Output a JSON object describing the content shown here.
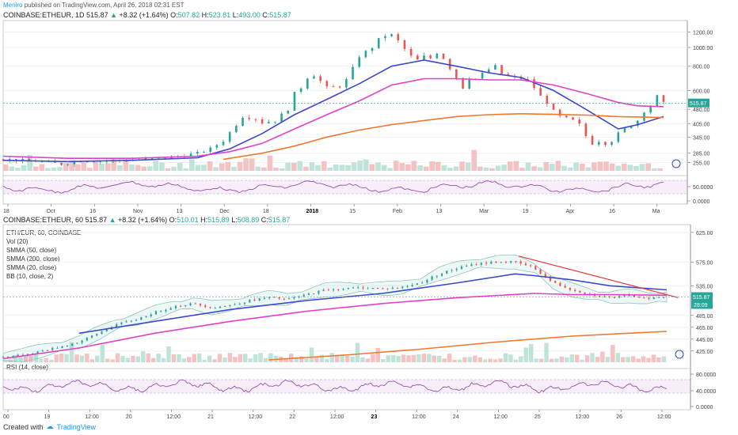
{
  "publish": {
    "author": "Meniro",
    "text": "published on TradingView.com, April 26, 2018 02:31 EST"
  },
  "footer": {
    "created_with": "Created with",
    "brand": "TradingView"
  },
  "panel_top": {
    "header_symbol": "COINBASE:ETHEUR, 1D",
    "header_price": "515.87",
    "header_change": "+8.32 (+1.64%)",
    "ohlc": {
      "o_label": "O:",
      "o": "507.82",
      "h_label": "H:",
      "h": "523.81",
      "l_label": "L:",
      "l": "493.00",
      "c_label": "C:",
      "c": "515.87"
    },
    "price_badge": "515.87",
    "rsi_ticks": [
      "50.0000",
      "0.0000"
    ]
  },
  "panel_bottom": {
    "header_symbol": "COINBASE:ETHEUR, 60",
    "header_price": "515.87",
    "header_change": "+8.32 (+1.64%)",
    "ohlc": {
      "o_label": "O:",
      "o": "510.01",
      "h_label": "H:",
      "h": "515.89",
      "l_label": "L:",
      "l": "508.89",
      "c_label": "C:",
      "c": "515.87"
    },
    "legend": [
      "ETH/EUR, 60, COINBASE",
      "Vol (20)",
      "SMMA (50, close)",
      "SMMA (200, close)",
      "SMMA (20, close)",
      "BB (10, close, 2)"
    ],
    "price_badge": "515.87",
    "price_badge2": "28:09",
    "rsi_label": "RSI (14, close)",
    "rsi_ticks": [
      "80.0000",
      "40.0000",
      "0.0000"
    ]
  },
  "chart_data": [
    {
      "type": "candlestick",
      "panel": "top",
      "title": "COINBASE:ETHEUR, 1D",
      "x_ticks": [
        "18",
        "Oct",
        "16",
        "Nov",
        "13",
        "Dec",
        "18",
        "2018",
        "15",
        "Feb",
        "13",
        "Mar",
        "19",
        "Apr",
        "16",
        "Ma"
      ],
      "y_ticks": [
        1200,
        1000,
        800,
        600,
        480,
        405,
        345,
        285,
        255
      ],
      "y_tick_labels": [
        "1200.00",
        "1000.00",
        "800.00",
        "600.00",
        "480.00",
        "405.00",
        "345.00",
        "285.00",
        "255.00"
      ],
      "ylim": [
        240,
        1300
      ],
      "scale": "log",
      "close_path": [
        [
          0,
          265
        ],
        [
          3,
          262
        ],
        [
          6,
          258
        ],
        [
          9,
          250
        ],
        [
          12,
          262
        ],
        [
          15,
          260
        ],
        [
          18,
          262
        ],
        [
          21,
          264
        ],
        [
          24,
          268
        ],
        [
          27,
          275
        ],
        [
          30,
          285
        ],
        [
          32,
          300
        ],
        [
          34,
          330
        ],
        [
          36,
          400
        ],
        [
          37,
          440
        ],
        [
          39,
          430
        ],
        [
          40,
          410
        ],
        [
          42,
          420
        ],
        [
          44,
          480
        ],
        [
          45,
          580
        ],
        [
          46,
          620
        ],
        [
          47,
          700
        ],
        [
          48,
          720
        ],
        [
          49,
          670
        ],
        [
          50,
          620
        ],
        [
          52,
          630
        ],
        [
          53,
          680
        ],
        [
          54,
          780
        ],
        [
          55,
          900
        ],
        [
          56,
          950
        ],
        [
          57,
          1000
        ],
        [
          58,
          1100
        ],
        [
          59,
          1150
        ],
        [
          60,
          1160
        ],
        [
          61,
          1080
        ],
        [
          62,
          980
        ],
        [
          63,
          900
        ],
        [
          64,
          860
        ],
        [
          65,
          900
        ],
        [
          66,
          880
        ],
        [
          67,
          940
        ],
        [
          68,
          880
        ],
        [
          69,
          780
        ],
        [
          70,
          700
        ],
        [
          71,
          620
        ],
        [
          72,
          700
        ],
        [
          73,
          690
        ],
        [
          74,
          730
        ],
        [
          75,
          770
        ],
        [
          76,
          800
        ],
        [
          77,
          730
        ],
        [
          78,
          710
        ],
        [
          79,
          700
        ],
        [
          80,
          690
        ],
        [
          81,
          680
        ],
        [
          82,
          620
        ],
        [
          83,
          560
        ],
        [
          84,
          520
        ],
        [
          85,
          470
        ],
        [
          86,
          440
        ],
        [
          87,
          430
        ],
        [
          88,
          420
        ],
        [
          89,
          400
        ],
        [
          90,
          350
        ],
        [
          91,
          320
        ],
        [
          92,
          330
        ],
        [
          93,
          320
        ],
        [
          94,
          330
        ],
        [
          95,
          360
        ],
        [
          96,
          380
        ],
        [
          97,
          400
        ],
        [
          98,
          420
        ],
        [
          99,
          470
        ],
        [
          100,
          500
        ],
        [
          101,
          560
        ],
        [
          102,
          515
        ]
      ],
      "series": [
        {
          "name": "SMMA 20",
          "color": "#3b48c9",
          "values": [
            [
              0,
              262
            ],
            [
              10,
              258
            ],
            [
              20,
              262
            ],
            [
              30,
              270
            ],
            [
              35,
              300
            ],
            [
              40,
              360
            ],
            [
              45,
              450
            ],
            [
              50,
              540
            ],
            [
              55,
              650
            ],
            [
              60,
              800
            ],
            [
              65,
              860
            ],
            [
              70,
              800
            ],
            [
              75,
              740
            ],
            [
              80,
              700
            ],
            [
              85,
              600
            ],
            [
              90,
              480
            ],
            [
              95,
              380
            ],
            [
              98,
              400
            ],
            [
              102,
              440
            ]
          ]
        },
        {
          "name": "SMMA 50",
          "color": "#e040c8",
          "values": [
            [
              0,
              275
            ],
            [
              10,
              268
            ],
            [
              20,
              268
            ],
            [
              30,
              275
            ],
            [
              35,
              290
            ],
            [
              40,
              320
            ],
            [
              45,
              380
            ],
            [
              50,
              450
            ],
            [
              55,
              530
            ],
            [
              60,
              640
            ],
            [
              65,
              690
            ],
            [
              70,
              690
            ],
            [
              75,
              680
            ],
            [
              80,
              680
            ],
            [
              85,
              640
            ],
            [
              90,
              580
            ],
            [
              95,
              520
            ],
            [
              98,
              500
            ],
            [
              102,
              495
            ]
          ]
        },
        {
          "name": "SMMA 200",
          "color": "#f07830",
          "values": [
            [
              34,
              265
            ],
            [
              40,
              285
            ],
            [
              45,
              310
            ],
            [
              50,
              345
            ],
            [
              55,
              375
            ],
            [
              60,
              400
            ],
            [
              65,
              420
            ],
            [
              70,
              440
            ],
            [
              75,
              450
            ],
            [
              80,
              455
            ],
            [
              85,
              452
            ],
            [
              90,
              448
            ],
            [
              95,
              440
            ],
            [
              102,
              435
            ]
          ]
        }
      ],
      "rsi_range": [
        0,
        100
      ]
    },
    {
      "type": "candlestick",
      "panel": "bottom",
      "title": "COINBASE:ETHEUR, 60",
      "x_ticks": [
        "00",
        "19",
        "12:00",
        "20",
        "12:00",
        "21",
        "12:00",
        "22",
        "12:00",
        "23",
        "12:00",
        "24",
        "12:00",
        "25",
        "12:00",
        "26",
        "12:00"
      ],
      "y_ticks": [
        625,
        575,
        535,
        485,
        465,
        445,
        425
      ],
      "y_tick_labels": [
        "625.00",
        "575.00",
        "535.00",
        "485.00",
        "465.00",
        "445.00",
        "425.00"
      ],
      "ylim": [
        410,
        630
      ],
      "close_path": [
        [
          0,
          415
        ],
        [
          5,
          418
        ],
        [
          10,
          425
        ],
        [
          15,
          432
        ],
        [
          20,
          440
        ],
        [
          25,
          455
        ],
        [
          30,
          470
        ],
        [
          35,
          478
        ],
        [
          40,
          490
        ],
        [
          45,
          500
        ],
        [
          50,
          505
        ],
        [
          55,
          498
        ],
        [
          60,
          502
        ],
        [
          65,
          510
        ],
        [
          70,
          515
        ],
        [
          75,
          512
        ],
        [
          80,
          520
        ],
        [
          85,
          528
        ],
        [
          90,
          530
        ],
        [
          95,
          532
        ],
        [
          100,
          530
        ],
        [
          105,
          532
        ],
        [
          110,
          540
        ],
        [
          115,
          555
        ],
        [
          120,
          565
        ],
        [
          125,
          572
        ],
        [
          130,
          575
        ],
        [
          135,
          575
        ],
        [
          140,
          565
        ],
        [
          145,
          540
        ],
        [
          150,
          528
        ],
        [
          155,
          520
        ],
        [
          160,
          515
        ],
        [
          165,
          518
        ],
        [
          170,
          514
        ],
        [
          175,
          516
        ]
      ],
      "series": [
        {
          "name": "SMMA 20",
          "color": "#3b48c9",
          "values": [
            [
              20,
              455
            ],
            [
              40,
              475
            ],
            [
              60,
              495
            ],
            [
              80,
              510
            ],
            [
              100,
              522
            ],
            [
              120,
              540
            ],
            [
              135,
              555
            ],
            [
              140,
              552
            ],
            [
              150,
              545
            ],
            [
              160,
              535
            ],
            [
              175,
              528
            ]
          ]
        },
        {
          "name": "SMMA 50",
          "color": "#e040c8",
          "values": [
            [
              0,
              412
            ],
            [
              20,
              430
            ],
            [
              40,
              455
            ],
            [
              60,
              475
            ],
            [
              80,
              492
            ],
            [
              100,
              505
            ],
            [
              120,
              515
            ],
            [
              140,
              522
            ],
            [
              150,
              520
            ],
            [
              160,
              520
            ],
            [
              175,
              519
            ]
          ]
        },
        {
          "name": "SMMA 200",
          "color": "#f07830",
          "values": [
            [
              70,
              410
            ],
            [
              90,
              418
            ],
            [
              110,
              428
            ],
            [
              130,
              440
            ],
            [
              150,
              450
            ],
            [
              165,
              455
            ],
            [
              175,
              458
            ]
          ]
        },
        {
          "name": "trendline",
          "color": "#e53935",
          "values": [
            [
              136,
              585
            ],
            [
              178,
              515
            ]
          ]
        }
      ],
      "rsi_range": [
        0,
        100
      ]
    }
  ]
}
